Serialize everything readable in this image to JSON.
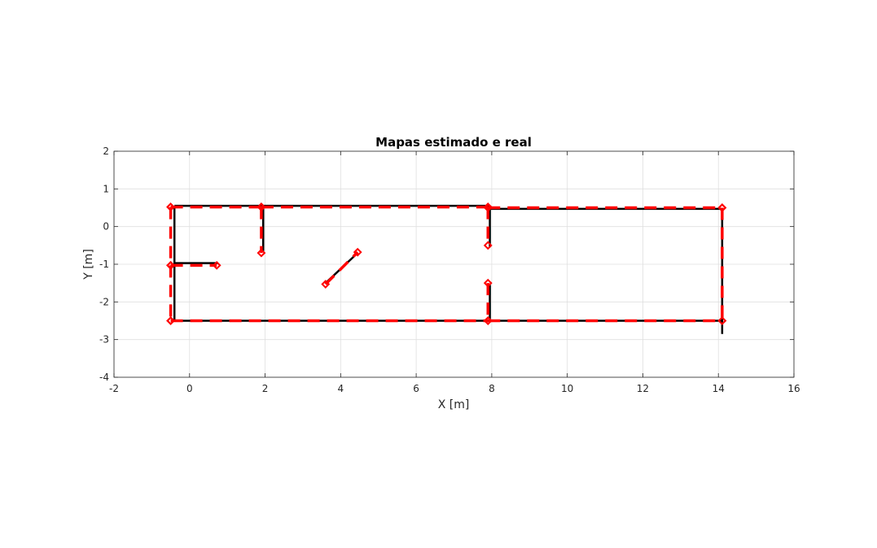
{
  "chart_data": {
    "type": "line",
    "title": "Mapas estimado e real",
    "xlabel": "X [m]",
    "ylabel": "Y [m]",
    "xlim": [
      -2,
      16
    ],
    "ylim": [
      -4,
      2
    ],
    "xticks": [
      -2,
      0,
      2,
      4,
      6,
      8,
      10,
      12,
      14,
      16
    ],
    "yticks": [
      -4,
      -3,
      -2,
      -1,
      0,
      1,
      2
    ],
    "xtick_labels": [
      "-2",
      "0",
      "2",
      "4",
      "6",
      "8",
      "10",
      "12",
      "14",
      "16"
    ],
    "ytick_labels": [
      "-4",
      "-3",
      "-2",
      "-1",
      "0",
      "1",
      "2"
    ],
    "grid": true,
    "series": [
      {
        "role": "real",
        "color": "#000000",
        "style": "solid",
        "segments": [
          {
            "x": [
              -0.4,
              7.95
            ],
            "y": [
              0.55,
              0.55
            ]
          },
          {
            "x": [
              7.95,
              14.1
            ],
            "y": [
              0.47,
              0.47
            ]
          },
          {
            "x": [
              -0.4,
              14.1
            ],
            "y": [
              -2.5,
              -2.5
            ]
          },
          {
            "x": [
              -0.4,
              -0.4
            ],
            "y": [
              0.55,
              -2.5
            ]
          },
          {
            "x": [
              14.1,
              14.1
            ],
            "y": [
              0.47,
              -2.85
            ]
          },
          {
            "x": [
              1.95,
              1.95
            ],
            "y": [
              0.55,
              -0.65
            ]
          },
          {
            "x": [
              7.95,
              7.95
            ],
            "y": [
              0.55,
              -0.55
            ]
          },
          {
            "x": [
              7.95,
              7.95
            ],
            "y": [
              -1.55,
              -2.5
            ]
          },
          {
            "x": [
              -0.4,
              0.75
            ],
            "y": [
              -0.97,
              -0.97
            ]
          },
          {
            "x": [
              3.6,
              4.45
            ],
            "y": [
              -1.5,
              -0.7
            ]
          }
        ]
      },
      {
        "role": "estimado",
        "color": "#ff0000",
        "style": "dashed",
        "markers": "diamond",
        "segments": [
          {
            "x": [
              -0.5,
              1.9
            ],
            "y": [
              0.52,
              0.52
            ]
          },
          {
            "x": [
              1.9,
              7.9
            ],
            "y": [
              0.52,
              0.52
            ]
          },
          {
            "x": [
              7.9,
              14.1
            ],
            "y": [
              0.5,
              0.5
            ]
          },
          {
            "x": [
              -0.5,
              7.9
            ],
            "y": [
              -2.5,
              -2.5
            ]
          },
          {
            "x": [
              7.9,
              14.1
            ],
            "y": [
              -2.5,
              -2.5
            ]
          },
          {
            "x": [
              -0.5,
              -0.5
            ],
            "y": [
              0.52,
              -1.03
            ]
          },
          {
            "x": [
              -0.5,
              -0.5
            ],
            "y": [
              -1.03,
              -2.5
            ]
          },
          {
            "x": [
              14.1,
              14.1
            ],
            "y": [
              0.5,
              -2.5
            ]
          },
          {
            "x": [
              1.9,
              1.9
            ],
            "y": [
              0.52,
              -0.7
            ]
          },
          {
            "x": [
              7.9,
              7.9
            ],
            "y": [
              0.52,
              -0.5
            ]
          },
          {
            "x": [
              7.9,
              7.9
            ],
            "y": [
              -1.5,
              -2.5
            ]
          },
          {
            "x": [
              -0.5,
              0.72
            ],
            "y": [
              -1.03,
              -1.03
            ]
          },
          {
            "x": [
              3.6,
              4.45
            ],
            "y": [
              -1.53,
              -0.68
            ]
          }
        ]
      }
    ]
  }
}
